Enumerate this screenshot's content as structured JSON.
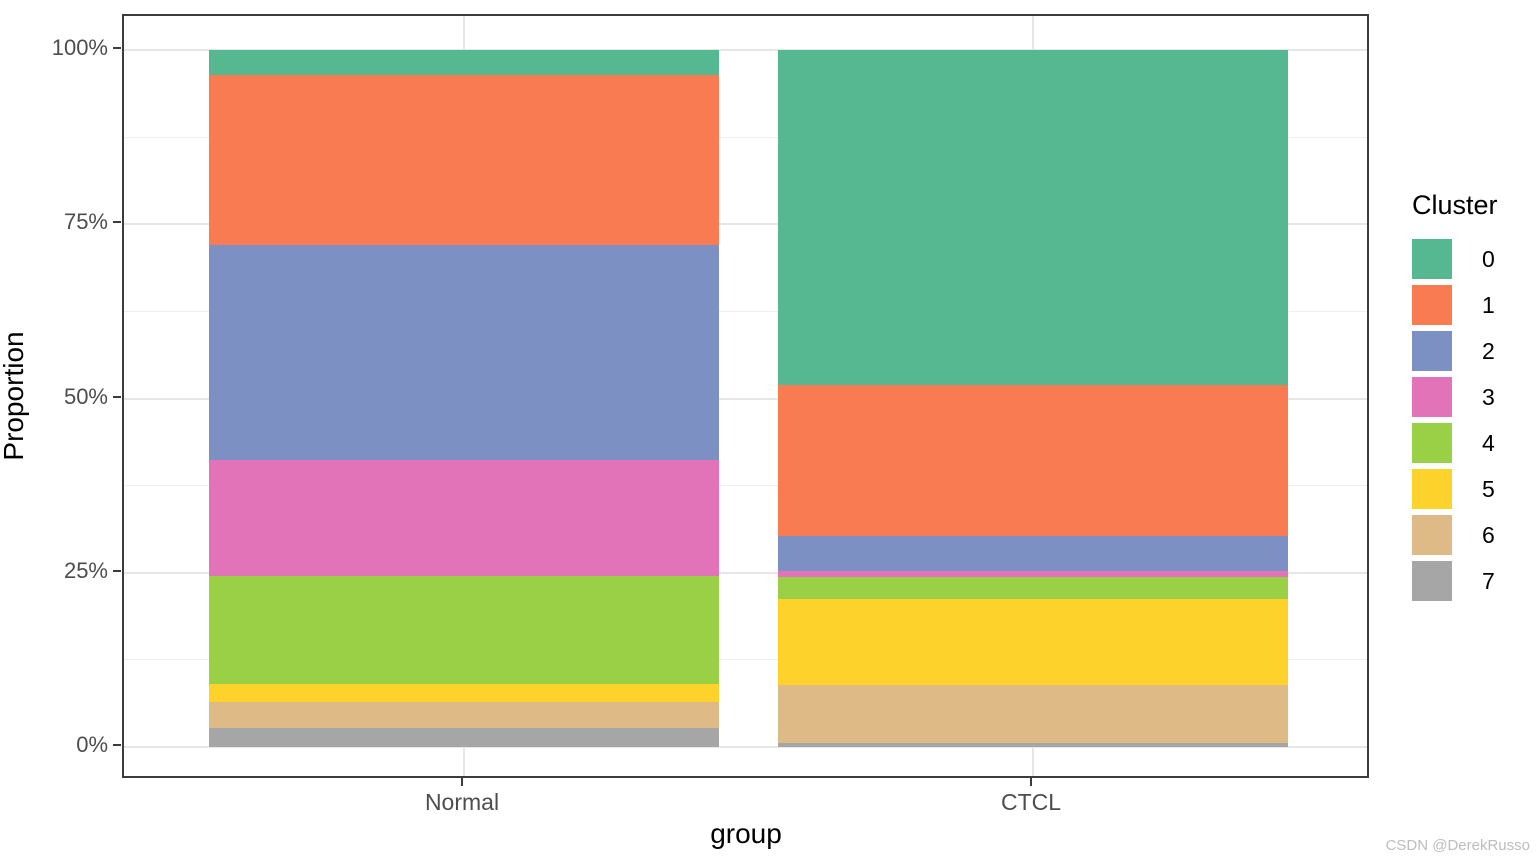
{
  "watermark": {
    "text": "CSDN @DerekRusso",
    "color": "#bdbdbd"
  },
  "theme": {
    "panel_border_color": "#3c3c3c",
    "grid_major_color": "#e6e6e6",
    "grid_minor_color": "#efefef",
    "tick_label_color": "#4d4d4d",
    "axis_title_color": "#000000",
    "background_color": "#ffffff"
  },
  "chart_data": {
    "type": "bar",
    "subtype": "stacked",
    "normalized": "percent",
    "title": "",
    "xlabel": "group",
    "ylabel": "Proportion",
    "categories": [
      "Normal",
      "CTCL"
    ],
    "legend": {
      "title": "Cluster",
      "position": "right"
    },
    "grid": "major+minor",
    "ylim": [
      0,
      100
    ],
    "y_axis": {
      "major_ticks": [
        0,
        25,
        50,
        75,
        100
      ],
      "tick_labels": [
        "0%",
        "25%",
        "50%",
        "75%",
        "100%"
      ],
      "minor_ticks": [
        12.5,
        37.5,
        62.5,
        87.5
      ]
    },
    "series": [
      {
        "name": "0",
        "color": "#55b891",
        "values": [
          3.6,
          48.1
        ]
      },
      {
        "name": "1",
        "color": "#f87b51",
        "values": [
          24.4,
          21.6
        ]
      },
      {
        "name": "2",
        "color": "#7d90c3",
        "values": [
          30.8,
          5.0
        ]
      },
      {
        "name": "3",
        "color": "#e273b9",
        "values": [
          16.6,
          0.9
        ]
      },
      {
        "name": "4",
        "color": "#99d046",
        "values": [
          15.6,
          3.1
        ]
      },
      {
        "name": "5",
        "color": "#fdd22b",
        "values": [
          2.6,
          12.4
        ]
      },
      {
        "name": "6",
        "color": "#debb86",
        "values": [
          3.7,
          8.3
        ]
      },
      {
        "name": "7",
        "color": "#a6a6a6",
        "values": [
          2.7,
          0.6
        ]
      }
    ]
  }
}
